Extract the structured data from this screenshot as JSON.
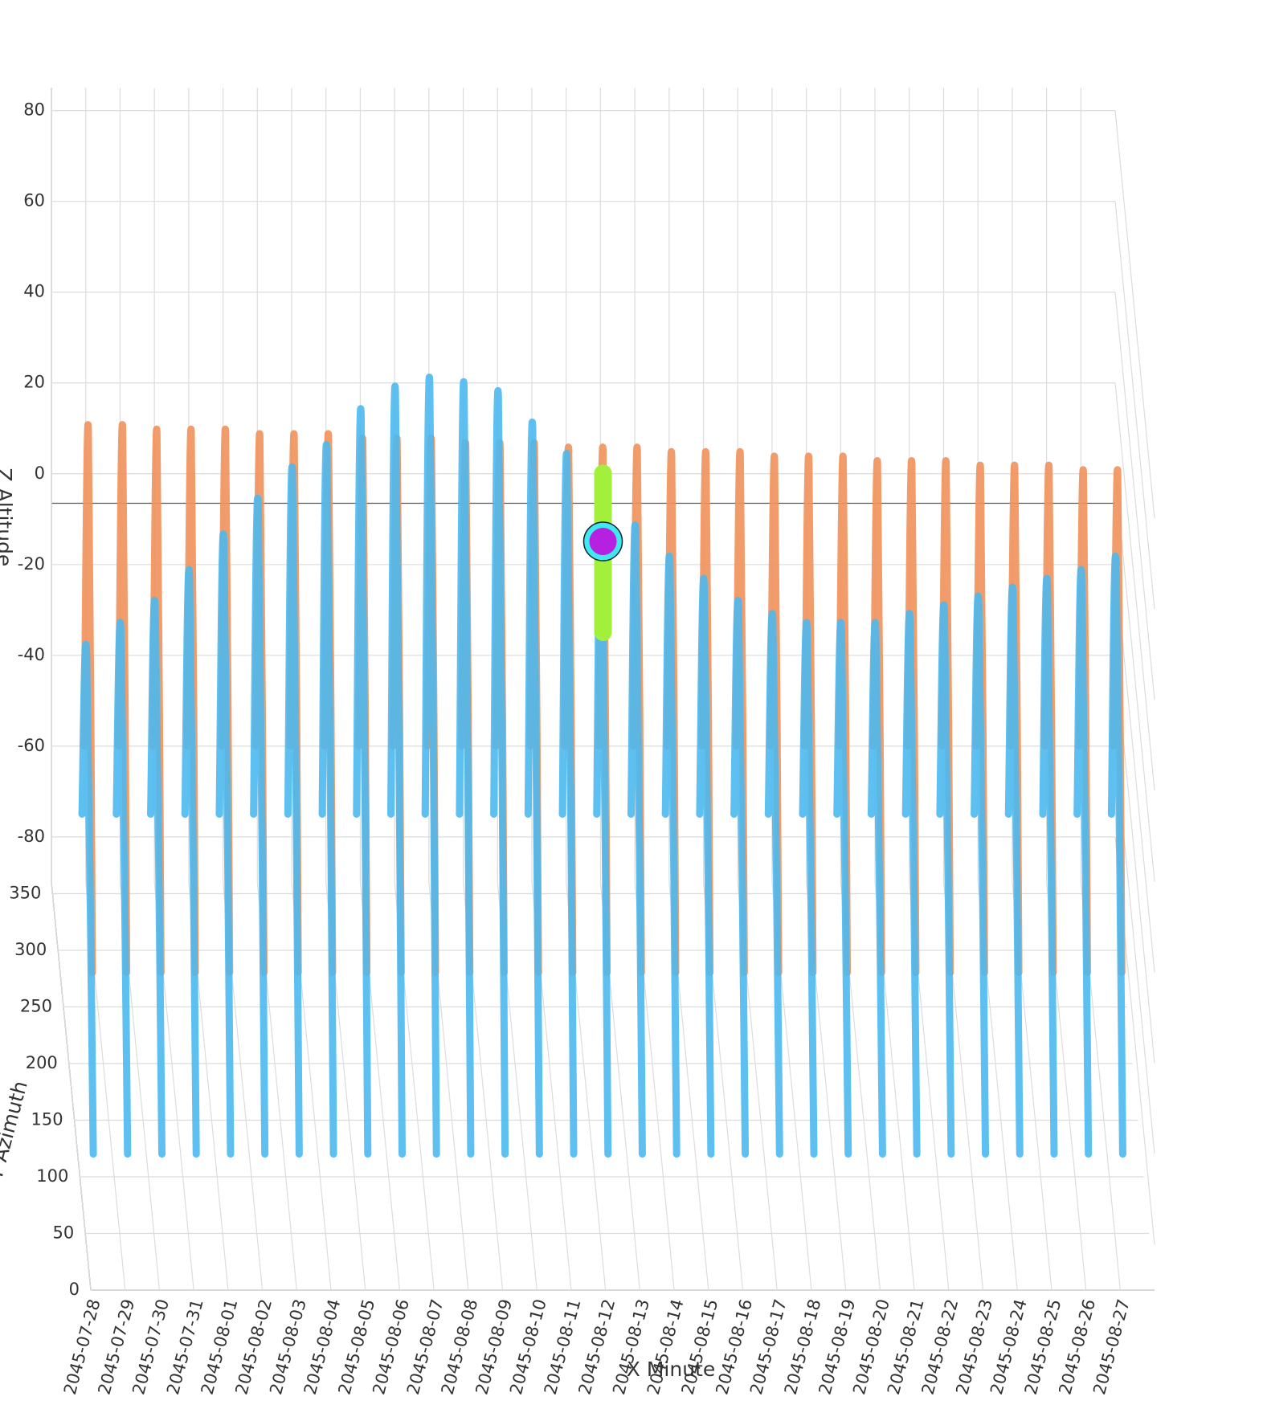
{
  "chart_data": {
    "type": "line3d",
    "xlabel": "X Minute",
    "ylabel": "Y Azimuth",
    "zlabel": "Z Altitude",
    "xlim": [
      0,
      31
    ],
    "ylim": [
      0,
      360
    ],
    "zlim": [
      -90,
      85
    ],
    "xticks": [
      {
        "value": 0,
        "label": "2045-07-28"
      },
      {
        "value": 1,
        "label": "2045-07-29"
      },
      {
        "value": 2,
        "label": "2045-07-30"
      },
      {
        "value": 3,
        "label": "2045-07-31"
      },
      {
        "value": 4,
        "label": "2045-08-01"
      },
      {
        "value": 5,
        "label": "2045-08-02"
      },
      {
        "value": 6,
        "label": "2045-08-03"
      },
      {
        "value": 7,
        "label": "2045-08-04"
      },
      {
        "value": 8,
        "label": "2045-08-05"
      },
      {
        "value": 9,
        "label": "2045-08-06"
      },
      {
        "value": 10,
        "label": "2045-08-07"
      },
      {
        "value": 11,
        "label": "2045-08-08"
      },
      {
        "value": 12,
        "label": "2045-08-09"
      },
      {
        "value": 13,
        "label": "2045-08-10"
      },
      {
        "value": 14,
        "label": "2045-08-11"
      },
      {
        "value": 15,
        "label": "2045-08-12"
      },
      {
        "value": 16,
        "label": "2045-08-13"
      },
      {
        "value": 17,
        "label": "2045-08-14"
      },
      {
        "value": 18,
        "label": "2045-08-15"
      },
      {
        "value": 19,
        "label": "2045-08-16"
      },
      {
        "value": 20,
        "label": "2045-08-17"
      },
      {
        "value": 21,
        "label": "2045-08-18"
      },
      {
        "value": 22,
        "label": "2045-08-19"
      },
      {
        "value": 23,
        "label": "2045-08-20"
      },
      {
        "value": 24,
        "label": "2045-08-21"
      },
      {
        "value": 25,
        "label": "2045-08-22"
      },
      {
        "value": 26,
        "label": "2045-08-23"
      },
      {
        "value": 27,
        "label": "2045-08-24"
      },
      {
        "value": 28,
        "label": "2045-08-25"
      },
      {
        "value": 29,
        "label": "2045-08-26"
      },
      {
        "value": 30,
        "label": "2045-08-27"
      }
    ],
    "yticks": [
      0,
      50,
      100,
      150,
      200,
      250,
      300,
      350
    ],
    "zticks": [
      -80,
      -60,
      -40,
      -20,
      0,
      20,
      40,
      60,
      80
    ],
    "series": [
      {
        "color": "#f0915a",
        "x": [
          0.3,
          0.5,
          0.7,
          null,
          1.3,
          1.5,
          1.7,
          null,
          2.3,
          2.5,
          2.7,
          null,
          3.3,
          3.5,
          3.7,
          null,
          4.3,
          4.5,
          4.7,
          null,
          5.3,
          5.5,
          5.7,
          null,
          6.3,
          6.5,
          6.7,
          null,
          7.3,
          7.5,
          7.7,
          null,
          8.3,
          8.5,
          8.7,
          null,
          9.3,
          9.5,
          9.7,
          null,
          10.3,
          10.5,
          10.7,
          null,
          11.3,
          11.5,
          11.7,
          null,
          12.3,
          12.5,
          12.7,
          null,
          13.3,
          13.5,
          13.7,
          null,
          14.3,
          14.5,
          14.7,
          null,
          15.3,
          15.5,
          15.7,
          null,
          16.3,
          16.5,
          16.7,
          null,
          17.3,
          17.5,
          17.7,
          null,
          18.3,
          18.5,
          18.7,
          null,
          19.3,
          19.5,
          19.7,
          null,
          20.3,
          20.5,
          20.7,
          null,
          21.3,
          21.5,
          21.7,
          null,
          22.3,
          22.5,
          22.7,
          null,
          23.3,
          23.5,
          23.7,
          null,
          24.3,
          24.5,
          24.7,
          null,
          25.3,
          25.5,
          25.7,
          null,
          26.3,
          26.5,
          26.7,
          null,
          27.3,
          27.5,
          27.7,
          null,
          28.3,
          28.5,
          28.7,
          null,
          29.3,
          29.5,
          29.7,
          null,
          30.3,
          30.5,
          30.7
        ],
        "y": [
          80,
          180,
          280,
          null,
          80,
          180,
          280,
          null,
          80,
          180,
          280,
          null,
          80,
          180,
          280,
          null,
          80,
          180,
          280,
          null,
          80,
          180,
          280,
          null,
          80,
          180,
          280,
          null,
          80,
          180,
          280,
          null,
          80,
          180,
          280,
          null,
          80,
          180,
          280,
          null,
          80,
          180,
          280,
          null,
          80,
          180,
          280,
          null,
          80,
          180,
          280,
          null,
          80,
          180,
          280,
          null,
          80,
          180,
          280,
          null,
          80,
          180,
          280,
          null,
          80,
          180,
          280,
          null,
          80,
          180,
          280,
          null,
          80,
          180,
          280,
          null,
          80,
          180,
          280,
          null,
          80,
          180,
          280,
          null,
          80,
          180,
          280,
          null,
          80,
          180,
          280,
          null,
          80,
          180,
          280,
          null,
          80,
          180,
          280,
          null,
          80,
          180,
          280,
          null,
          80,
          180,
          280,
          null,
          80,
          180,
          280,
          null,
          80,
          180,
          280,
          null,
          80,
          180,
          280,
          null,
          80,
          180,
          280
        ],
        "z": [
          -40,
          55,
          -40,
          null,
          -40,
          55,
          -40,
          null,
          -40,
          54,
          -40,
          null,
          -40,
          54,
          -40,
          null,
          -40,
          54,
          -40,
          null,
          -40,
          53,
          -40,
          null,
          -40,
          53,
          -40,
          null,
          -40,
          53,
          -40,
          null,
          -40,
          52,
          -40,
          null,
          -40,
          52,
          -40,
          null,
          -40,
          52,
          -40,
          null,
          -40,
          51,
          -40,
          null,
          -40,
          51,
          -40,
          null,
          -40,
          51,
          -40,
          null,
          -40,
          50,
          -40,
          null,
          -40,
          50,
          -40,
          null,
          -40,
          50,
          -40,
          null,
          -40,
          49,
          -40,
          null,
          -40,
          49,
          -40,
          null,
          -40,
          49,
          -40,
          null,
          -40,
          48,
          -40,
          null,
          -40,
          48,
          -40,
          null,
          -40,
          48,
          -40,
          null,
          -40,
          47,
          -40,
          null,
          -40,
          47,
          -40,
          null,
          -40,
          47,
          -40,
          null,
          -40,
          46,
          -40,
          null,
          -40,
          46,
          -40,
          null,
          -40,
          46,
          -40,
          null,
          -40,
          45,
          -40,
          null,
          -40,
          45,
          -40
        ]
      },
      {
        "color": "#4db8f0",
        "x": [
          0.2,
          0.45,
          0.7,
          null,
          1.2,
          1.45,
          1.7,
          null,
          2.2,
          2.45,
          2.7,
          null,
          3.2,
          3.45,
          3.7,
          null,
          4.2,
          4.45,
          4.7,
          null,
          5.2,
          5.45,
          5.7,
          null,
          6.2,
          6.45,
          6.7,
          null,
          7.2,
          7.45,
          7.7,
          null,
          8.2,
          8.45,
          8.7,
          null,
          9.2,
          9.45,
          9.7,
          null,
          10.2,
          10.45,
          10.7,
          null,
          11.2,
          11.45,
          11.7,
          null,
          12.2,
          12.45,
          12.7,
          null,
          13.2,
          13.45,
          13.7,
          null,
          14.2,
          14.45,
          14.7,
          null,
          15.2,
          15.45,
          15.7,
          null,
          16.2,
          16.45,
          16.7,
          null,
          17.2,
          17.45,
          17.7,
          null,
          18.2,
          18.45,
          18.7,
          null,
          19.2,
          19.45,
          19.7,
          null,
          20.2,
          20.45,
          20.7,
          null,
          21.2,
          21.45,
          21.7,
          null,
          22.2,
          22.45,
          22.7,
          null,
          23.2,
          23.45,
          23.7,
          null,
          24.2,
          24.45,
          24.7,
          null,
          25.2,
          25.45,
          25.7,
          null,
          26.2,
          26.45,
          26.7,
          null,
          27.2,
          27.45,
          27.7,
          null,
          28.2,
          28.45,
          28.7,
          null,
          29.2,
          29.45,
          29.7,
          null,
          30.2,
          30.45,
          30.7
        ],
        "y": [
          40,
          180,
          300,
          null,
          40,
          180,
          300,
          null,
          40,
          180,
          300,
          null,
          40,
          180,
          300,
          null,
          40,
          180,
          300,
          null,
          40,
          180,
          300,
          null,
          40,
          180,
          300,
          null,
          40,
          180,
          300,
          null,
          40,
          180,
          300,
          null,
          40,
          180,
          300,
          null,
          40,
          180,
          300,
          null,
          40,
          180,
          300,
          null,
          40,
          180,
          300,
          null,
          40,
          180,
          300,
          null,
          40,
          180,
          300,
          null,
          40,
          180,
          300,
          null,
          40,
          180,
          300,
          null,
          40,
          180,
          300,
          null,
          40,
          180,
          300,
          null,
          40,
          180,
          300,
          null,
          40,
          180,
          300,
          null,
          40,
          180,
          300,
          null,
          40,
          180,
          300,
          null,
          40,
          180,
          300,
          null,
          40,
          180,
          300,
          null,
          40,
          180,
          300,
          null,
          40,
          180,
          300,
          null,
          40,
          180,
          300,
          null,
          40,
          180,
          300,
          null,
          40,
          180,
          300,
          null,
          40,
          180,
          300
        ],
        "z": [
          -70,
          5,
          -60,
          null,
          -70,
          10,
          -60,
          null,
          -70,
          15,
          -60,
          null,
          -70,
          22,
          -60,
          null,
          -70,
          30,
          -60,
          null,
          -70,
          38,
          -60,
          null,
          -70,
          45,
          -60,
          null,
          -70,
          50,
          -60,
          null,
          -70,
          58,
          -60,
          null,
          -70,
          63,
          -60,
          null,
          -70,
          65,
          -60,
          null,
          -70,
          64,
          -60,
          null,
          -70,
          62,
          -60,
          null,
          -70,
          55,
          -60,
          null,
          -70,
          48,
          -60,
          null,
          -70,
          40,
          -60,
          null,
          -70,
          32,
          -60,
          null,
          -70,
          25,
          -60,
          null,
          -70,
          20,
          -60,
          null,
          -70,
          15,
          -60,
          null,
          -70,
          12,
          -60,
          null,
          -70,
          10,
          -60,
          null,
          -70,
          10,
          -60,
          null,
          -70,
          10,
          -60,
          null,
          -70,
          12,
          -60,
          null,
          -70,
          14,
          -60,
          null,
          -70,
          16,
          -60,
          null,
          -70,
          18,
          -60,
          null,
          -70,
          20,
          -60,
          null,
          -70,
          22,
          -60,
          null,
          -70,
          25,
          -60
        ]
      }
    ],
    "highlight": {
      "x": 15.5,
      "y": 180,
      "z": [
        10,
        45
      ],
      "color": "#a3f03c"
    },
    "marker": {
      "x": 15.5,
      "y": 180,
      "z": 30,
      "color": "#b620e0",
      "ring": "#40e8f0"
    },
    "grid": true
  }
}
